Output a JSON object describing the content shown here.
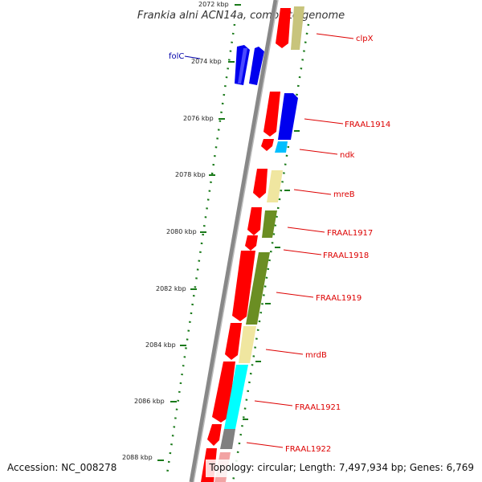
{
  "title": "Frankia alni ACN14a, complete genome",
  "accession": "Accession: NC_008278",
  "topology": "Topology: circular; Length: 7,497,934 bp; Genes: 6,769",
  "ticks": [
    "2072 kbp",
    "2074 kbp",
    "2076 kbp",
    "2078 kbp",
    "2080 kbp",
    "2082 kbp",
    "2084 kbp",
    "2086 kbp",
    "2088 kbp"
  ],
  "genes": [
    {
      "label": "clpX",
      "product_color": "#c8c47c",
      "strand": "+"
    },
    {
      "label": "folC",
      "product_color": "#0000ee",
      "strand": "-"
    },
    {
      "label": "FRAAL1914",
      "product_color": "#0000ee",
      "strand": "+"
    },
    {
      "label": "ndk",
      "product_color": "#00bfff",
      "strand": "+"
    },
    {
      "label": "mreB",
      "product_color": "#f0e6a0",
      "strand": "+"
    },
    {
      "label": "FRAAL1917",
      "product_color": "#6b8e23",
      "strand": "+"
    },
    {
      "label": "FRAAL1918",
      "product_color": "#ff0000",
      "strand": "+"
    },
    {
      "label": "FRAAL1919",
      "product_color": "#6b8e23",
      "strand": "+"
    },
    {
      "label": "mrdB",
      "product_color": "#f0e6a0",
      "strand": "+"
    },
    {
      "label": "FRAAL1921",
      "product_color": "#00ffff",
      "strand": "+"
    },
    {
      "label": "FRAAL1922",
      "product_color": "#808080",
      "strand": "+"
    }
  ],
  "colors": {
    "backbone": "#888888",
    "cds": "#ff0000",
    "tick": "#1a7a1a",
    "label": "#dd0000",
    "label_reverse": "#0000aa"
  }
}
